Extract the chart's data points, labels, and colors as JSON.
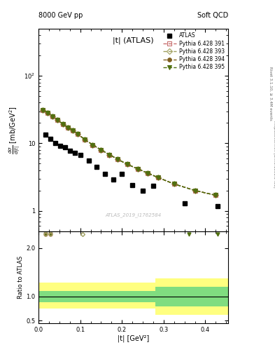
{
  "title_left": "8000 GeV pp",
  "title_right": "Soft QCD",
  "right_label1": "Rivet 3.1.10, ≥ 3.4M events",
  "right_label2": "mcplots.cern.ch [arXiv:1306.3436]",
  "plot_title": "|t| (ATLAS)",
  "watermark": "ATLAS_2019_I1762584",
  "xlabel": "|t| [GeV²]",
  "ylabel_ratio": "Ratio to ATLAS",
  "atlas_x": [
    0.016,
    0.028,
    0.04,
    0.052,
    0.064,
    0.076,
    0.088,
    0.1,
    0.12,
    0.14,
    0.16,
    0.18,
    0.2,
    0.225,
    0.25,
    0.275,
    0.35,
    0.43
  ],
  "atlas_y": [
    13.5,
    11.8,
    10.0,
    9.2,
    8.7,
    7.8,
    7.3,
    6.8,
    5.5,
    4.5,
    3.5,
    2.9,
    3.5,
    2.4,
    2.0,
    2.35,
    1.3,
    1.18
  ],
  "pythia_x": [
    0.01,
    0.022,
    0.034,
    0.046,
    0.058,
    0.07,
    0.082,
    0.094,
    0.11,
    0.13,
    0.15,
    0.17,
    0.19,
    0.2125,
    0.2375,
    0.2625,
    0.2875,
    0.325,
    0.375,
    0.425
  ],
  "pythia_y": [
    31.0,
    28.5,
    25.0,
    22.0,
    19.5,
    17.2,
    15.5,
    13.8,
    11.5,
    9.5,
    8.0,
    6.8,
    5.8,
    4.9,
    4.2,
    3.6,
    3.1,
    2.5,
    2.0,
    1.7
  ],
  "series_labels": [
    "Pythia 6.428 391",
    "Pythia 6.428 393",
    "Pythia 6.428 394",
    "Pythia 6.428 395"
  ],
  "series_colors": [
    "#c87070",
    "#a0a060",
    "#806020",
    "#507010"
  ],
  "series_markers": [
    "s",
    "D",
    "o",
    "v"
  ],
  "series_mfc": [
    "none",
    "none",
    "#806020",
    "#507010"
  ],
  "ylim_main": [
    0.5,
    500
  ],
  "xlim": [
    0.0,
    0.455
  ],
  "ylim_ratio": [
    0.45,
    2.35
  ],
  "yticks_ratio": [
    0.5,
    1.0,
    2.0
  ],
  "xticks": [
    0.0,
    0.1,
    0.2,
    0.3,
    0.4
  ],
  "bg_color": "#ffffff"
}
